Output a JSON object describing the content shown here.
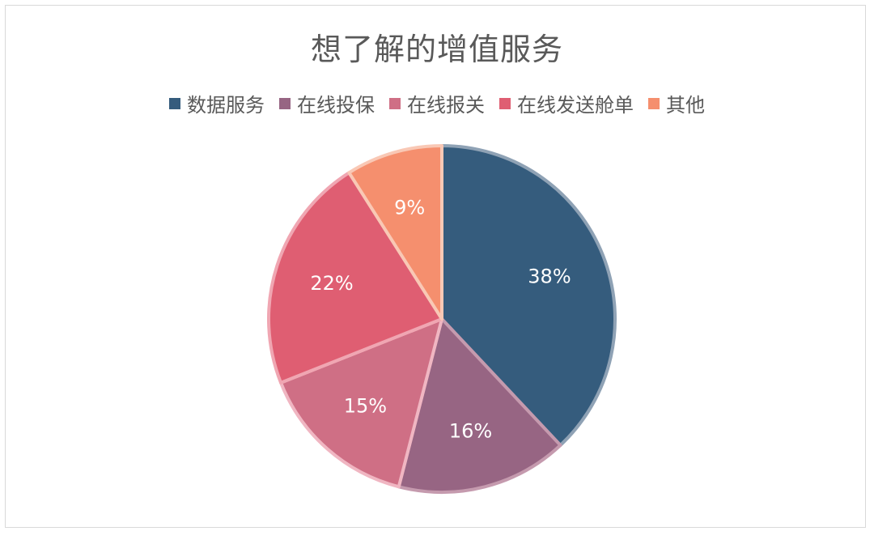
{
  "chart_data": {
    "type": "pie",
    "title": "想了解的增值服务",
    "legend_position": "top",
    "categories": [
      "数据服务",
      "在线投保",
      "在线报关",
      "在线发送舱单",
      "其他"
    ],
    "values": [
      38,
      16,
      15,
      22,
      9
    ],
    "labels": [
      "38%",
      "16%",
      "15%",
      "22%",
      "9%"
    ],
    "colors": [
      "#355c7d",
      "#976583",
      "#cf6f85",
      "#df5e72",
      "#f58f6e"
    ],
    "edge_colors": [
      "#8fa2b5",
      "#c59aae",
      "#f0b6c2",
      "#f0a6b2",
      "#f9c8b5"
    ]
  }
}
